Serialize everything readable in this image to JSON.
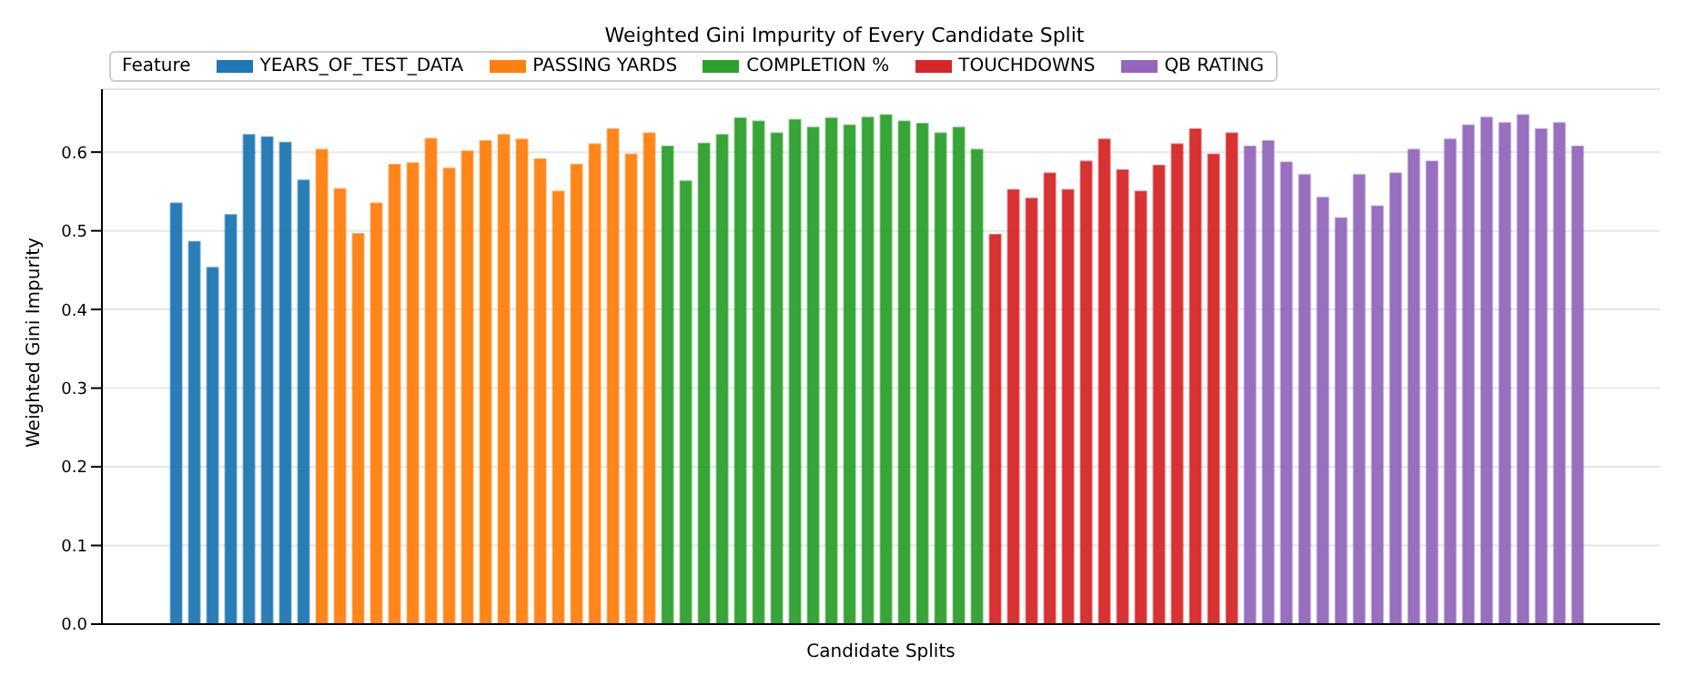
{
  "chart_data": {
    "type": "bar",
    "title": "Weighted Gini Impurity of Every Candidate Split",
    "xlabel": "Candidate Splits",
    "ylabel": "Weighted Gini Impurity",
    "legend_title": "Feature",
    "categories": [
      null,
      null,
      null,
      null,
      null,
      null,
      null,
      null,
      null,
      null,
      null,
      null,
      null,
      null,
      null,
      null,
      null,
      null,
      null,
      null,
      null,
      null,
      null,
      null,
      null,
      null,
      null,
      null,
      null,
      null,
      null,
      null,
      null,
      null,
      null,
      null,
      null,
      null,
      null,
      null,
      null,
      null,
      null,
      null,
      null,
      null,
      null,
      null,
      null,
      null,
      null,
      null,
      null,
      null,
      null,
      null,
      null,
      null,
      null,
      null,
      null,
      null,
      null,
      null,
      null,
      null,
      null,
      null,
      null,
      null,
      null,
      null,
      null,
      null,
      null,
      null,
      null,
      null
    ],
    "series": [
      {
        "name": "YEARS_OF_TEST_DATA",
        "color": "#1f77b4",
        "values": [
          0.535,
          0.486,
          0.453,
          0.52,
          0.622,
          0.619,
          0.612,
          0.564,
          null,
          null,
          null,
          null,
          null,
          null,
          null,
          null,
          null,
          null,
          null,
          null,
          null,
          null,
          null,
          null,
          null,
          null,
          null,
          null,
          null,
          null,
          null,
          null,
          null,
          null,
          null,
          null,
          null,
          null,
          null,
          null,
          null,
          null,
          null,
          null,
          null,
          null,
          null,
          null,
          null,
          null,
          null,
          null,
          null,
          null,
          null,
          null,
          null,
          null,
          null,
          null,
          null,
          null,
          null,
          null,
          null,
          null,
          null,
          null,
          null,
          null,
          null,
          null,
          null,
          null,
          null,
          null,
          null,
          null
        ]
      },
      {
        "name": "PASSING YARDS",
        "color": "#ff7f0e",
        "values": [
          null,
          null,
          null,
          null,
          null,
          null,
          null,
          null,
          0.603,
          0.553,
          0.496,
          0.535,
          0.584,
          0.586,
          0.617,
          0.579,
          0.601,
          0.614,
          0.622,
          0.616,
          0.591,
          0.55,
          0.584,
          0.61,
          0.629,
          0.597,
          0.624,
          null,
          null,
          null,
          null,
          null,
          null,
          null,
          null,
          null,
          null,
          null,
          null,
          null,
          null,
          null,
          null,
          null,
          null,
          null,
          null,
          null,
          null,
          null,
          null,
          null,
          null,
          null,
          null,
          null,
          null,
          null,
          null,
          null,
          null,
          null,
          null,
          null,
          null,
          null,
          null,
          null,
          null,
          null,
          null,
          null,
          null,
          null,
          null,
          null,
          null,
          null
        ]
      },
      {
        "name": "COMPLETION %",
        "color": "#2ca02c",
        "values": [
          null,
          null,
          null,
          null,
          null,
          null,
          null,
          null,
          null,
          null,
          null,
          null,
          null,
          null,
          null,
          null,
          null,
          null,
          null,
          null,
          null,
          null,
          null,
          null,
          null,
          null,
          null,
          0.607,
          0.563,
          0.611,
          0.622,
          0.643,
          0.639,
          0.624,
          0.641,
          0.631,
          0.643,
          0.634,
          0.644,
          0.647,
          0.639,
          0.636,
          0.624,
          0.631,
          0.603,
          null,
          null,
          null,
          null,
          null,
          null,
          null,
          null,
          null,
          null,
          null,
          null,
          null,
          null,
          null,
          null,
          null,
          null,
          null,
          null,
          null,
          null,
          null,
          null,
          null,
          null,
          null,
          null,
          null,
          null,
          null,
          null,
          null
        ]
      },
      {
        "name": "TOUCHDOWNS",
        "color": "#d62728",
        "values": [
          null,
          null,
          null,
          null,
          null,
          null,
          null,
          null,
          null,
          null,
          null,
          null,
          null,
          null,
          null,
          null,
          null,
          null,
          null,
          null,
          null,
          null,
          null,
          null,
          null,
          null,
          null,
          null,
          null,
          null,
          null,
          null,
          null,
          null,
          null,
          null,
          null,
          null,
          null,
          null,
          null,
          null,
          null,
          null,
          null,
          0.495,
          0.552,
          0.541,
          0.573,
          0.552,
          0.588,
          0.616,
          0.577,
          0.55,
          0.583,
          0.61,
          0.629,
          0.597,
          0.624,
          null,
          null,
          null,
          null,
          null,
          null,
          null,
          null,
          null,
          null,
          null,
          null,
          null,
          null,
          null,
          null,
          null,
          null,
          null
        ]
      },
      {
        "name": "QB RATING",
        "color": "#9467bd",
        "values": [
          null,
          null,
          null,
          null,
          null,
          null,
          null,
          null,
          null,
          null,
          null,
          null,
          null,
          null,
          null,
          null,
          null,
          null,
          null,
          null,
          null,
          null,
          null,
          null,
          null,
          null,
          null,
          null,
          null,
          null,
          null,
          null,
          null,
          null,
          null,
          null,
          null,
          null,
          null,
          null,
          null,
          null,
          null,
          null,
          null,
          null,
          null,
          null,
          null,
          null,
          null,
          null,
          null,
          null,
          null,
          null,
          null,
          null,
          null,
          0.607,
          0.614,
          0.587,
          0.571,
          0.542,
          0.516,
          0.571,
          0.531,
          0.573,
          0.603,
          0.588,
          0.616,
          0.634,
          0.644,
          0.637,
          0.647,
          0.629,
          0.637,
          0.607
        ]
      }
    ],
    "ylim": [
      0,
      0.68
    ],
    "yticks": [
      {
        "value": 0,
        "label": "0.0"
      },
      0.1,
      0.2,
      0.3,
      0.4,
      0.5,
      0.6
    ],
    "stacked": true,
    "grid": "y",
    "legend": "top left"
  }
}
